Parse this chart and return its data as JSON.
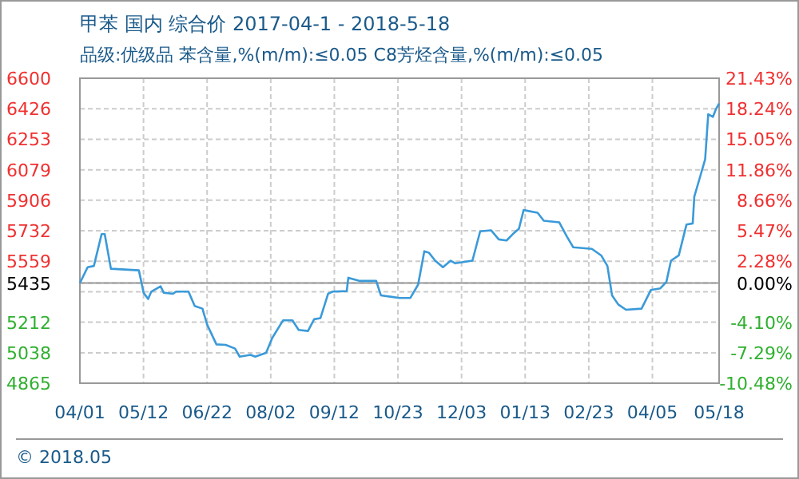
{
  "chart_data": {
    "type": "line",
    "title": "甲苯 国内 综合价 2017-04-1 - 2018-5-18",
    "subtitle": "品级:优级品 苯含量,%(m/m):≤0.05 C8芳烃含量,%(m/m):≤0.05",
    "annotations": [
      "© 2018.05"
    ],
    "grid": true,
    "marker": "none",
    "line_style": "solid",
    "xlim": [
      "2017-04-01",
      "2018-05-18"
    ],
    "xticks": [
      {
        "value": "2017-04-01",
        "label": "04/01"
      },
      {
        "value": "2017-05-12",
        "label": "05/12"
      },
      {
        "value": "2017-06-22",
        "label": "06/22"
      },
      {
        "value": "2017-08-02",
        "label": "08/02"
      },
      {
        "value": "2017-09-12",
        "label": "09/12"
      },
      {
        "value": "2017-10-23",
        "label": "10/23"
      },
      {
        "value": "2017-12-03",
        "label": "12/03"
      },
      {
        "value": "2018-01-13",
        "label": "01/13"
      },
      {
        "value": "2018-02-23",
        "label": "02/23"
      },
      {
        "value": "2018-04-05",
        "label": "04/05"
      },
      {
        "value": "2018-05-18",
        "label": "05/18"
      }
    ],
    "ylim": [
      4865,
      6600
    ],
    "yticks": [
      4865,
      5038,
      5212,
      {
        "value": 5385,
        "label": null
      },
      5435,
      5559,
      5732,
      5906,
      6079,
      6253,
      6426,
      6600
    ],
    "y2lim": [
      -10.48,
      21.43
    ],
    "y2ticks": [
      {
        "value": -10.48,
        "label": "-10.48%"
      },
      {
        "value": -7.29,
        "label": "-7.29%"
      },
      {
        "value": -4.1,
        "label": "-4.10%"
      },
      {
        "value": -0.91,
        "label": null
      },
      {
        "value": 0,
        "label": "0.00%"
      },
      {
        "value": 2.28,
        "label": "2.28%"
      },
      {
        "value": 5.47,
        "label": "5.47%"
      },
      {
        "value": 8.66,
        "label": "8.66%"
      },
      {
        "value": 11.86,
        "label": "11.86%"
      },
      {
        "value": 15.05,
        "label": "15.05%"
      },
      {
        "value": 18.24,
        "label": "18.24%"
      },
      {
        "value": 21.43,
        "label": "21.43%"
      }
    ],
    "ref_lines": [
      {
        "axis": "y",
        "value": 5435,
        "color": "#999999"
      }
    ],
    "x": [
      "2017-04-01",
      "2017-04-06",
      "2017-04-10",
      "2017-04-15",
      "2017-04-17",
      "2017-04-21",
      "2017-05-09",
      "2017-05-11",
      "2017-05-12",
      "2017-05-15",
      "2017-05-17",
      "2017-05-23",
      "2017-05-25",
      "2017-05-31",
      "2017-06-02",
      "2017-06-10",
      "2017-06-14",
      "2017-06-19",
      "2017-06-22",
      "2017-06-28",
      "2017-07-04",
      "2017-07-10",
      "2017-07-13",
      "2017-07-20",
      "2017-07-23",
      "2017-07-30",
      "2017-08-03",
      "2017-08-10",
      "2017-08-16",
      "2017-08-20",
      "2017-08-26",
      "2017-08-30",
      "2017-09-03",
      "2017-09-08",
      "2017-09-11",
      "2017-09-20",
      "2017-09-21",
      "2017-09-28",
      "2017-10-09",
      "2017-10-12",
      "2017-10-19",
      "2017-10-24",
      "2017-10-31",
      "2017-11-05",
      "2017-11-09",
      "2017-11-12",
      "2017-11-16",
      "2017-11-21",
      "2017-11-26",
      "2017-11-29",
      "2017-12-10",
      "2017-12-15",
      "2017-12-22",
      "2017-12-27",
      "2018-01-01",
      "2018-01-05",
      "2018-01-09",
      "2018-01-12",
      "2018-01-21",
      "2018-01-25",
      "2018-02-04",
      "2018-02-09",
      "2018-02-13",
      "2018-02-25",
      "2018-03-03",
      "2018-03-07",
      "2018-03-10",
      "2018-03-14",
      "2018-03-19",
      "2018-03-29",
      "2018-04-04",
      "2018-04-10",
      "2018-04-14",
      "2018-04-17",
      "2018-04-22",
      "2018-04-27",
      "2018-05-01",
      "2018-05-02",
      "2018-05-06",
      "2018-05-09",
      "2018-05-11",
      "2018-05-14",
      "2018-05-16",
      "2018-05-18"
    ],
    "series": [
      {
        "color": "#3a9ad9",
        "values": [
          5435,
          5525,
          5532,
          5713,
          5713,
          5516,
          5507,
          5425,
          5380,
          5344,
          5386,
          5416,
          5380,
          5374,
          5386,
          5386,
          5304,
          5289,
          5198,
          5086,
          5083,
          5062,
          5016,
          5026,
          5016,
          5038,
          5123,
          5223,
          5223,
          5168,
          5162,
          5229,
          5235,
          5374,
          5386,
          5389,
          5465,
          5447,
          5447,
          5365,
          5356,
          5350,
          5350,
          5426,
          5616,
          5607,
          5562,
          5525,
          5562,
          5547,
          5562,
          5729,
          5735,
          5683,
          5677,
          5713,
          5744,
          5850,
          5835,
          5789,
          5780,
          5698,
          5638,
          5629,
          5592,
          5532,
          5365,
          5313,
          5283,
          5289,
          5395,
          5404,
          5441,
          5562,
          5592,
          5768,
          5774,
          5926,
          6047,
          6138,
          6395,
          6380,
          6425,
          6456
        ]
      }
    ]
  }
}
